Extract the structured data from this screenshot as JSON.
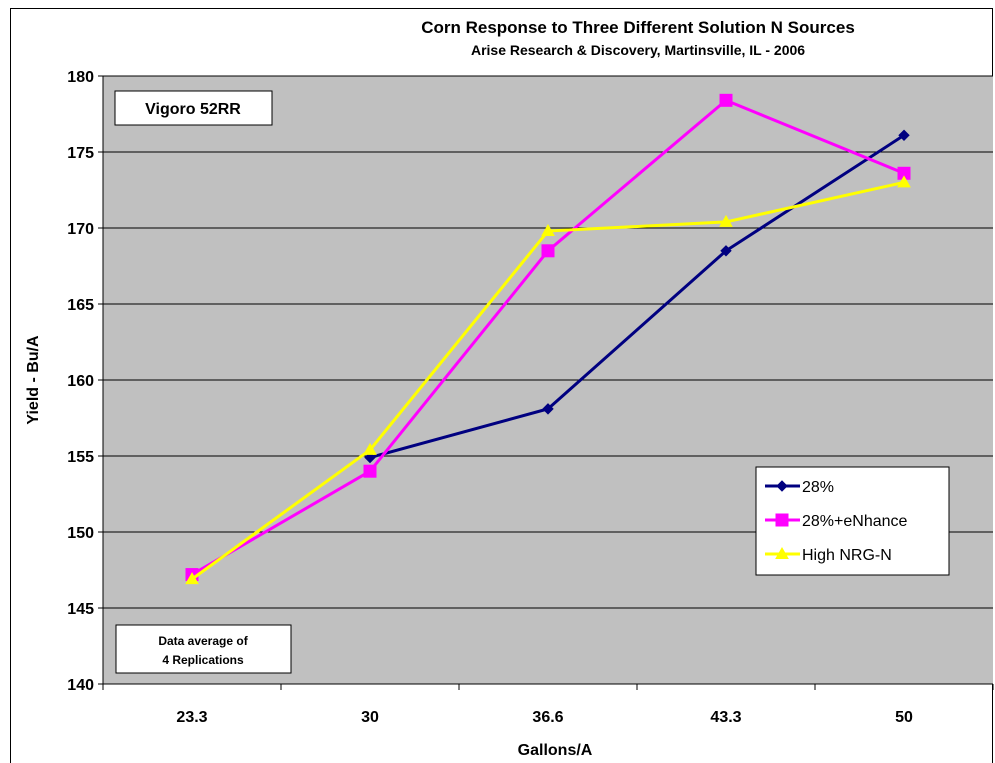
{
  "chart_data": {
    "type": "line",
    "title": "Corn Response to Three Different Solution N Sources",
    "subtitle": "Arise Research & Discovery, Martinsville, IL - 2006",
    "xlabel": "Gallons/A",
    "ylabel": "Yield - Bu/A",
    "categories": [
      "23.3",
      "30",
      "36.6",
      "43.3",
      "50"
    ],
    "ylim": [
      140,
      180
    ],
    "yticks": [
      140,
      145,
      150,
      155,
      160,
      165,
      170,
      175,
      180
    ],
    "grid": "horizontal",
    "legend_position": "right",
    "background": "#C0C0C0",
    "series": [
      {
        "name": "28%",
        "color": "#000080",
        "marker": "diamond",
        "values": [
          null,
          154.9,
          158.1,
          168.5,
          176.1
        ]
      },
      {
        "name": "28%+eNhance",
        "color": "#FF00FF",
        "marker": "square",
        "values": [
          147.2,
          154.0,
          168.5,
          178.4,
          173.6
        ]
      },
      {
        "name": "High NRG-N",
        "color": "#FFFF00",
        "marker": "triangle",
        "values": [
          146.9,
          155.4,
          169.8,
          170.4,
          173.0
        ]
      }
    ],
    "annotations": {
      "variety": "Vigoro 52RR",
      "note_line1": "Data average of",
      "note_line2": "4 Replications"
    }
  }
}
